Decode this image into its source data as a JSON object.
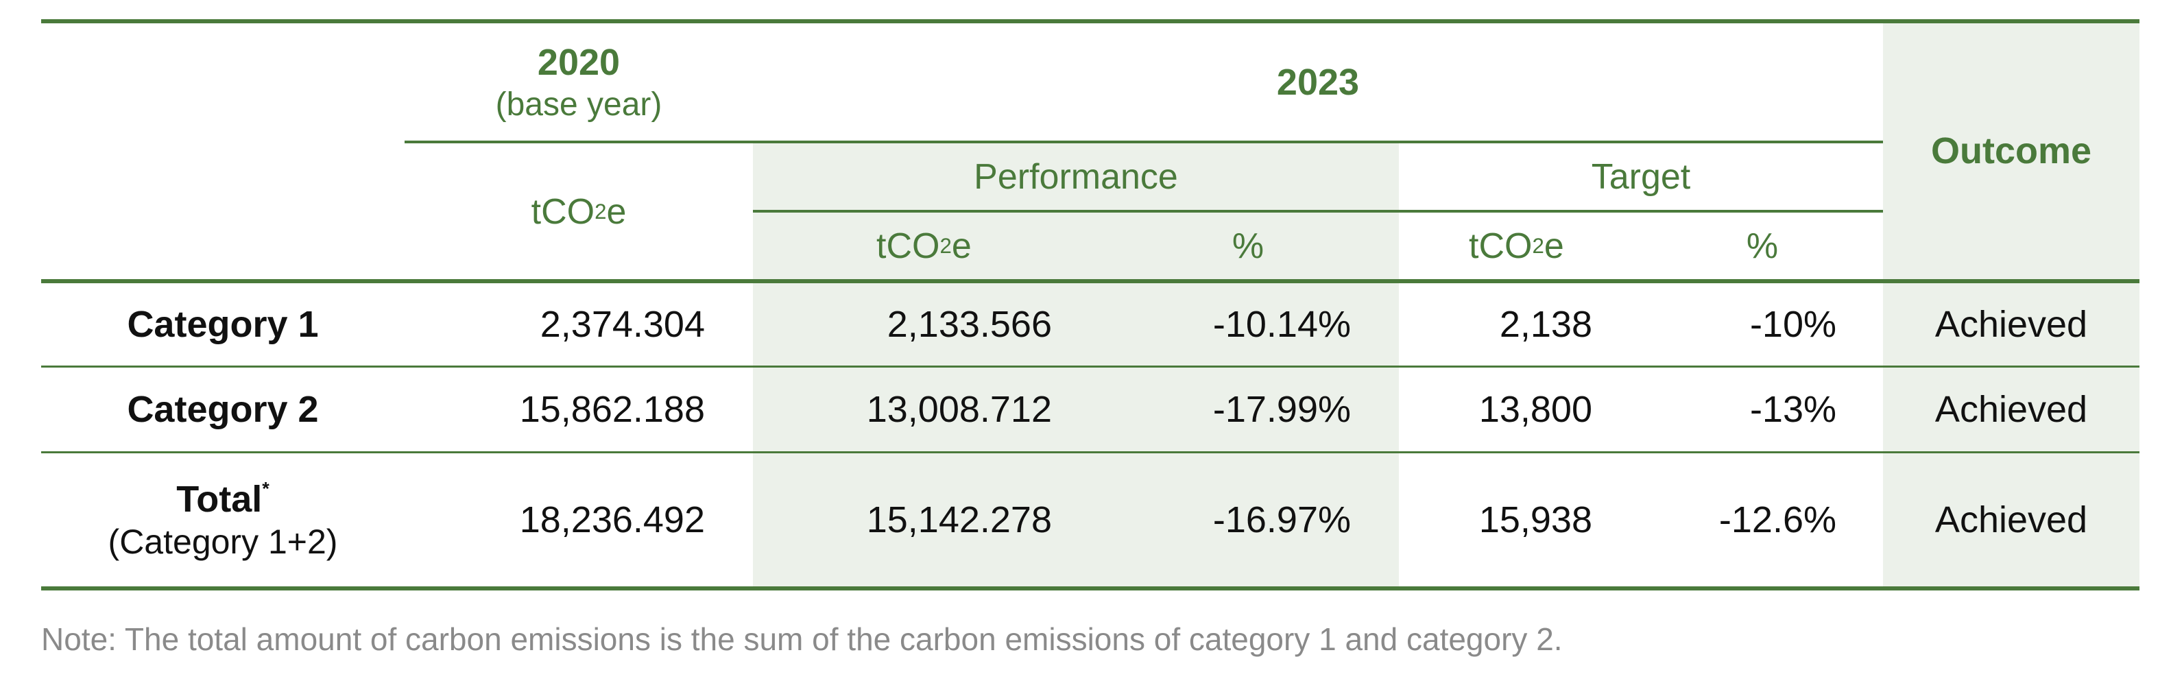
{
  "header": {
    "year_base": "2020",
    "year_base_sub": "(base year)",
    "year_current": "2023",
    "outcome": "Outcome",
    "performance": "Performance",
    "target": "Target",
    "unit_prefix": "tCO",
    "unit_sub": "2",
    "unit_suffix": "e",
    "percent": "%"
  },
  "rows": [
    {
      "label": "Category 1",
      "label_sub": "",
      "base": "2,374.304",
      "perf_t": "2,133.566",
      "perf_pct": "-10.14%",
      "target_t": "2,138",
      "target_pct": "-10%",
      "outcome": "Achieved"
    },
    {
      "label": "Category 2",
      "label_sub": "",
      "base": "15,862.188",
      "perf_t": "13,008.712",
      "perf_pct": "-17.99%",
      "target_t": "13,800",
      "target_pct": "-13%",
      "outcome": "Achieved"
    },
    {
      "label": "Total",
      "label_sup": "*",
      "label_sub": "(Category 1+2)",
      "base": "18,236.492",
      "perf_t": "15,142.278",
      "perf_pct": "-16.97%",
      "target_t": "15,938",
      "target_pct": "-12.6%",
      "outcome": "Achieved"
    }
  ],
  "note": "Note: The total amount of carbon emissions is the sum of the carbon emissions of category 1 and category 2.",
  "colors": {
    "accent": "#4a7a3b",
    "band": "#ecf1ea",
    "note": "#8a8a8a"
  }
}
